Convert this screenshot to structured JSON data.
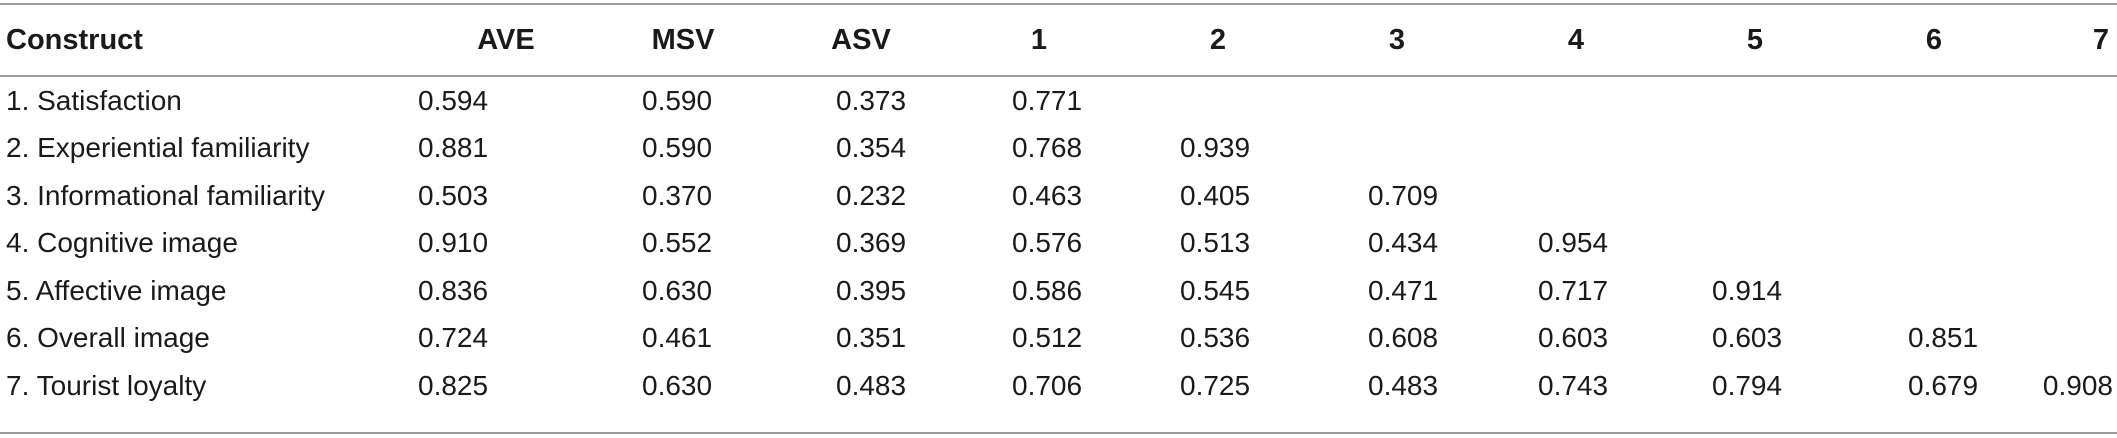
{
  "table": {
    "headers": [
      "Construct",
      "AVE",
      "MSV",
      "ASV",
      "1",
      "2",
      "3",
      "4",
      "5",
      "6",
      "7"
    ],
    "rows": [
      {
        "construct": "1. Satisfaction",
        "ave": "0.594",
        "msv": "0.590",
        "asv": "0.373",
        "c1": "0.771",
        "c2": "",
        "c3": "",
        "c4": "",
        "c5": "",
        "c6": "",
        "c7": ""
      },
      {
        "construct": "2. Experiential familiarity",
        "ave": "0.881",
        "msv": "0.590",
        "asv": "0.354",
        "c1": "0.768",
        "c2": "0.939",
        "c3": "",
        "c4": "",
        "c5": "",
        "c6": "",
        "c7": ""
      },
      {
        "construct": "3. Informational familiarity",
        "ave": "0.503",
        "msv": "0.370",
        "asv": "0.232",
        "c1": "0.463",
        "c2": "0.405",
        "c3": "0.709",
        "c4": "",
        "c5": "",
        "c6": "",
        "c7": ""
      },
      {
        "construct": "4. Cognitive image",
        "ave": "0.910",
        "msv": "0.552",
        "asv": "0.369",
        "c1": "0.576",
        "c2": "0.513",
        "c3": "0.434",
        "c4": "0.954",
        "c5": "",
        "c6": "",
        "c7": ""
      },
      {
        "construct": "5. Affective image",
        "ave": "0.836",
        "msv": "0.630",
        "asv": "0.395",
        "c1": "0.586",
        "c2": "0.545",
        "c3": "0.471",
        "c4": "0.717",
        "c5": "0.914",
        "c6": "",
        "c7": ""
      },
      {
        "construct": "6. Overall image",
        "ave": "0.724",
        "msv": "0.461",
        "asv": "0.351",
        "c1": "0.512",
        "c2": "0.536",
        "c3": "0.608",
        "c4": "0.603",
        "c5": "0.603",
        "c6": "0.851",
        "c7": ""
      },
      {
        "construct": "7. Tourist loyalty",
        "ave": "0.825",
        "msv": "0.630",
        "asv": "0.483",
        "c1": "0.706",
        "c2": "0.725",
        "c3": "0.483",
        "c4": "0.743",
        "c5": "0.794",
        "c6": "0.679",
        "c7": "0.908"
      }
    ]
  }
}
